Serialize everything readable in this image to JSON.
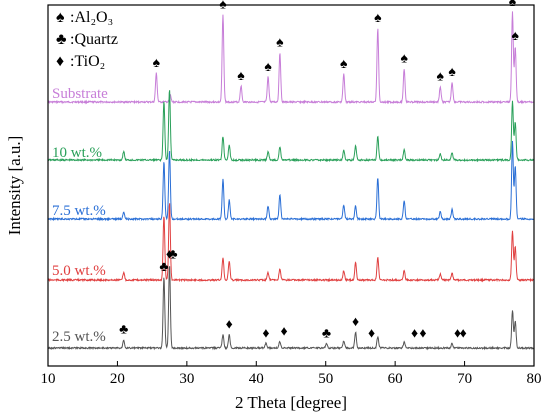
{
  "chart_data": {
    "type": "line",
    "title": "",
    "xlabel": "2 Theta [degree]",
    "ylabel": "Intensity [a.u.]",
    "xlim": [
      10,
      80
    ],
    "x_ticks": [
      10,
      20,
      30,
      40,
      50,
      60,
      70,
      80
    ],
    "y_ticks_shown": false,
    "grid": false,
    "legend": {
      "placement": "top-left",
      "entries": [
        {
          "symbol": "♠",
          "label": "Al₂O₃"
        },
        {
          "symbol": "♣",
          "label": "Quartz"
        },
        {
          "symbol": "♦",
          "label": "TiO₂"
        }
      ]
    },
    "series": [
      {
        "name": "Substrate",
        "color": "#c77ed8",
        "peaks": [
          {
            "x": 25.6,
            "y": 0.32
          },
          {
            "x": 27.6,
            "y": 0.08
          },
          {
            "x": 35.2,
            "y": 0.97
          },
          {
            "x": 37.8,
            "y": 0.18
          },
          {
            "x": 41.7,
            "y": 0.28
          },
          {
            "x": 43.4,
            "y": 0.55
          },
          {
            "x": 52.6,
            "y": 0.31
          },
          {
            "x": 57.5,
            "y": 0.82
          },
          {
            "x": 61.3,
            "y": 0.37
          },
          {
            "x": 66.5,
            "y": 0.17
          },
          {
            "x": 68.2,
            "y": 0.22
          },
          {
            "x": 76.9,
            "y": 1.0
          },
          {
            "x": 77.3,
            "y": 0.62
          }
        ]
      },
      {
        "name": "10 wt.%",
        "color": "#2aa05a",
        "peaks": [
          {
            "x": 20.9,
            "y": 0.09
          },
          {
            "x": 26.7,
            "y": 0.62
          },
          {
            "x": 27.5,
            "y": 0.75
          },
          {
            "x": 35.2,
            "y": 0.25
          },
          {
            "x": 36.1,
            "y": 0.16
          },
          {
            "x": 41.7,
            "y": 0.09
          },
          {
            "x": 43.4,
            "y": 0.14
          },
          {
            "x": 52.6,
            "y": 0.1
          },
          {
            "x": 54.3,
            "y": 0.15
          },
          {
            "x": 57.5,
            "y": 0.25
          },
          {
            "x": 61.3,
            "y": 0.11
          },
          {
            "x": 66.5,
            "y": 0.06
          },
          {
            "x": 68.2,
            "y": 0.08
          },
          {
            "x": 76.9,
            "y": 0.62
          },
          {
            "x": 77.3,
            "y": 0.4
          }
        ]
      },
      {
        "name": "7.5 wt.%",
        "color": "#2a6fd6",
        "peaks": [
          {
            "x": 20.9,
            "y": 0.08
          },
          {
            "x": 26.7,
            "y": 0.6
          },
          {
            "x": 27.5,
            "y": 0.72
          },
          {
            "x": 35.2,
            "y": 0.42
          },
          {
            "x": 36.1,
            "y": 0.2
          },
          {
            "x": 41.7,
            "y": 0.14
          },
          {
            "x": 43.4,
            "y": 0.26
          },
          {
            "x": 52.6,
            "y": 0.15
          },
          {
            "x": 54.3,
            "y": 0.14
          },
          {
            "x": 57.5,
            "y": 0.44
          },
          {
            "x": 61.3,
            "y": 0.2
          },
          {
            "x": 66.5,
            "y": 0.08
          },
          {
            "x": 68.2,
            "y": 0.1
          },
          {
            "x": 76.9,
            "y": 0.82
          },
          {
            "x": 77.3,
            "y": 0.56
          }
        ]
      },
      {
        "name": "5.0 wt.%",
        "color": "#e04040",
        "peaks": [
          {
            "x": 20.9,
            "y": 0.08
          },
          {
            "x": 26.7,
            "y": 0.68
          },
          {
            "x": 27.5,
            "y": 0.82
          },
          {
            "x": 35.2,
            "y": 0.24
          },
          {
            "x": 36.1,
            "y": 0.2
          },
          {
            "x": 41.7,
            "y": 0.08
          },
          {
            "x": 43.4,
            "y": 0.12
          },
          {
            "x": 52.6,
            "y": 0.1
          },
          {
            "x": 54.3,
            "y": 0.18
          },
          {
            "x": 57.5,
            "y": 0.24
          },
          {
            "x": 61.3,
            "y": 0.1
          },
          {
            "x": 66.5,
            "y": 0.06
          },
          {
            "x": 68.2,
            "y": 0.07
          },
          {
            "x": 76.9,
            "y": 0.52
          },
          {
            "x": 77.3,
            "y": 0.35
          }
        ]
      },
      {
        "name": "2.5 wt.%",
        "color": "#555555",
        "peaks": [
          {
            "x": 20.9,
            "y": 0.09
          },
          {
            "x": 26.7,
            "y": 0.75
          },
          {
            "x": 27.5,
            "y": 0.88
          },
          {
            "x": 35.2,
            "y": 0.14
          },
          {
            "x": 36.1,
            "y": 0.14
          },
          {
            "x": 41.4,
            "y": 0.05
          },
          {
            "x": 43.4,
            "y": 0.07
          },
          {
            "x": 50.1,
            "y": 0.05
          },
          {
            "x": 52.6,
            "y": 0.07
          },
          {
            "x": 54.3,
            "y": 0.17
          },
          {
            "x": 57.5,
            "y": 0.12
          },
          {
            "x": 61.3,
            "y": 0.06
          },
          {
            "x": 68.2,
            "y": 0.05
          },
          {
            "x": 76.9,
            "y": 0.4
          },
          {
            "x": 77.3,
            "y": 0.28
          }
        ]
      }
    ],
    "annotations": [
      {
        "series": "Substrate",
        "symbol": "♠",
        "x": [
          25.6,
          35.2,
          37.8,
          41.7,
          43.4,
          52.6,
          57.5,
          61.3,
          66.5,
          68.2,
          76.9,
          77.3
        ]
      },
      {
        "series": "2.5 wt.%",
        "symbol": "♣",
        "x": [
          20.9,
          26.7,
          28.0,
          50.1
        ]
      },
      {
        "series": "2.5 wt.%",
        "symbol": "♦",
        "x": [
          27.5,
          36.1,
          41.4,
          44.0,
          54.3,
          56.6,
          62.8,
          64.0,
          69.0,
          69.8
        ]
      }
    ]
  }
}
